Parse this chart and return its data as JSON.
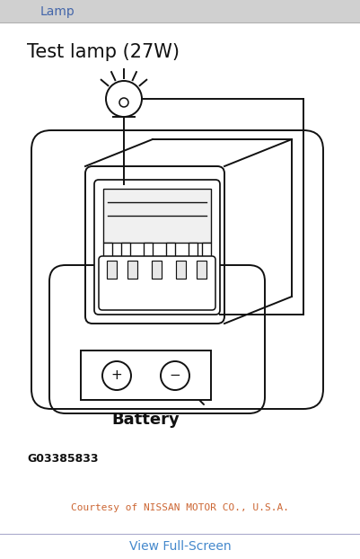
{
  "bg_color": "#d8d8d8",
  "main_bg": "#ffffff",
  "title_bar_color": "#d0d0d0",
  "title_bar_text": "Lamp",
  "title_bar_text_color": "#4466aa",
  "test_lamp_label": "Test lamp (27W)",
  "battery_label": "Battery",
  "code_label": "G03385833",
  "courtesy_label": "Courtesy of NISSAN MOTOR CO., U.S.A.",
  "view_fullscreen_label": "View Full-Screen",
  "view_fullscreen_color": "#4488cc",
  "line_color": "#111111",
  "bottom_bar_color": "#ffffff",
  "title_bar_height": 25,
  "bottom_bar_height": 28,
  "fig_w": 401,
  "fig_h": 622
}
